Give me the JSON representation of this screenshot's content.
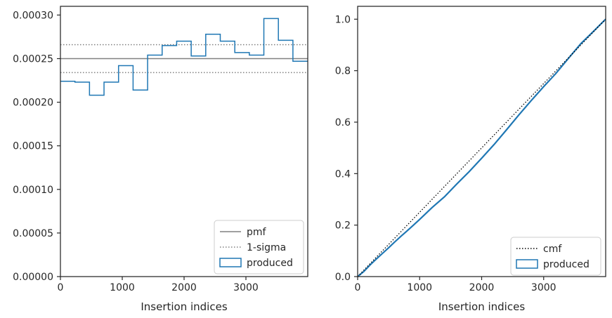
{
  "chart_data": [
    {
      "type": "line",
      "xlabel": "Insertion indices",
      "ylabel": "",
      "xlim": [
        0,
        4000
      ],
      "ylim": [
        0,
        0.00031
      ],
      "xticks": [
        0,
        1000,
        2000,
        3000
      ],
      "xtick_labels": [
        "0",
        "1000",
        "2000",
        "3000"
      ],
      "yticks": [
        0,
        5e-05,
        0.0001,
        0.00015,
        0.0002,
        0.00025,
        0.0003
      ],
      "ytick_labels": [
        "0.00000",
        "0.00005",
        "0.00010",
        "0.00015",
        "0.00020",
        "0.00025",
        "0.00030"
      ],
      "grid": false,
      "legend_position": "lower-right",
      "reference_lines": [
        {
          "name": "pmf",
          "y": 0.00025,
          "style": "solid",
          "color": "#808080"
        },
        {
          "name": "1-sigma",
          "y": 0.000266,
          "style": "dotted",
          "color": "#808080"
        },
        {
          "name": "1-sigma",
          "y": 0.000234,
          "style": "dotted",
          "color": "#808080"
        }
      ],
      "series": [
        {
          "name": "produced",
          "kind": "step-histogram",
          "color": "#1f77b4",
          "edges": [
            0,
            235,
            470,
            705,
            940,
            1175,
            1410,
            1645,
            1880,
            2115,
            2350,
            2585,
            2820,
            3055,
            3290,
            3525,
            3760,
            4000
          ],
          "values": [
            0.000224,
            0.000223,
            0.000208,
            0.000223,
            0.000242,
            0.000214,
            0.000254,
            0.000265,
            0.00027,
            0.000253,
            0.000278,
            0.00027,
            0.000257,
            0.000254,
            0.000296,
            0.000271,
            0.000247
          ]
        }
      ],
      "legend": [
        {
          "label": "pmf",
          "style": "solid-line"
        },
        {
          "label": "1-sigma",
          "style": "dotted-line"
        },
        {
          "label": "produced",
          "style": "box"
        }
      ]
    },
    {
      "type": "line",
      "xlabel": "Insertion indices",
      "ylabel": "",
      "xlim": [
        0,
        4000
      ],
      "ylim": [
        0,
        1.05
      ],
      "xticks": [
        0,
        1000,
        2000,
        3000
      ],
      "xtick_labels": [
        "0",
        "1000",
        "2000",
        "3000"
      ],
      "yticks": [
        0,
        0.2,
        0.4,
        0.6,
        0.8,
        1.0
      ],
      "ytick_labels": [
        "0.0",
        "0.2",
        "0.4",
        "0.6",
        "0.8",
        "1.0"
      ],
      "grid": false,
      "legend_position": "lower-right",
      "series": [
        {
          "name": "cmf",
          "style": "dotted",
          "color": "#000000",
          "x": [
            0,
            4000
          ],
          "y": [
            0,
            1.0
          ]
        },
        {
          "name": "produced",
          "style": "solid",
          "color": "#1f77b4",
          "x": [
            0,
            100,
            200,
            300,
            400,
            500,
            600,
            700,
            800,
            900,
            1000,
            1200,
            1400,
            1600,
            1800,
            2000,
            2200,
            2400,
            2600,
            2800,
            3000,
            3200,
            3400,
            3600,
            3800,
            4000
          ],
          "y": [
            0,
            0.02,
            0.045,
            0.068,
            0.09,
            0.112,
            0.135,
            0.157,
            0.178,
            0.2,
            0.222,
            0.268,
            0.31,
            0.36,
            0.408,
            0.46,
            0.513,
            0.57,
            0.628,
            0.684,
            0.738,
            0.79,
            0.848,
            0.905,
            0.952,
            1.0
          ]
        }
      ],
      "legend": [
        {
          "label": "cmf",
          "style": "dotted-line"
        },
        {
          "label": "produced",
          "style": "box"
        }
      ]
    }
  ]
}
